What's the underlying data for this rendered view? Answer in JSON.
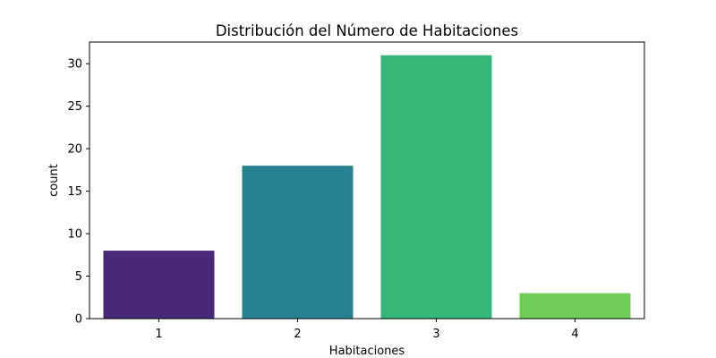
{
  "chart_data": {
    "type": "bar",
    "title": "Distribución del Número de Habitaciones",
    "xlabel": "Habitaciones",
    "ylabel": "count",
    "categories": [
      "1",
      "2",
      "3",
      "4"
    ],
    "values": [
      8,
      18,
      31,
      3
    ],
    "colors": [
      "#482878",
      "#26828e",
      "#35b779",
      "#6ece58"
    ],
    "ylim": [
      0,
      32.55
    ],
    "yticks": [
      0,
      5,
      10,
      15,
      20,
      25,
      30
    ],
    "grid": false,
    "legend": "none"
  }
}
